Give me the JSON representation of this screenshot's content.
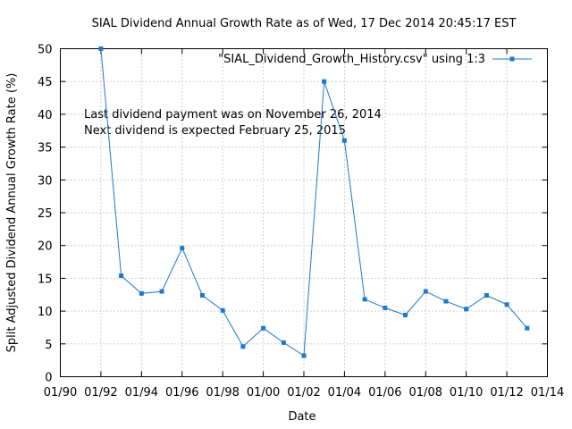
{
  "chart_data": {
    "type": "line",
    "title": "SIAL Dividend Annual Growth Rate as of Wed, 17 Dec 2014 20:45:17 EST",
    "xlabel": "Date",
    "ylabel": "Split Adjusted Dividend Annual Growth Rate (%)",
    "x_tick_labels": [
      "01/90",
      "01/92",
      "01/94",
      "01/96",
      "01/98",
      "01/00",
      "01/02",
      "01/04",
      "01/06",
      "01/08",
      "01/10",
      "01/12",
      "01/14"
    ],
    "x_ticks": [
      1990,
      1992,
      1994,
      1996,
      1998,
      2000,
      2002,
      2004,
      2006,
      2008,
      2010,
      2012,
      2014
    ],
    "y_ticks": [
      0,
      5,
      10,
      15,
      20,
      25,
      30,
      35,
      40,
      45,
      50
    ],
    "xlim": [
      1990,
      2014
    ],
    "ylim": [
      0,
      50
    ],
    "grid": true,
    "legend_position": "top-right",
    "annotations": [
      "Last dividend payment was on November 26, 2014",
      "Next dividend is expected February 25, 2015"
    ],
    "series": [
      {
        "name": "\"SIAL_Dividend_Growth_History.csv\" using 1:3",
        "color": "#1f78c8",
        "x": [
          1992,
          1993,
          1994,
          1995,
          1996,
          1997,
          1998,
          1999,
          2000,
          2001,
          2002,
          2003,
          2004,
          2005,
          2006,
          2007,
          2008,
          2009,
          2010,
          2011,
          2012,
          2013
        ],
        "y": [
          50,
          15.4,
          12.7,
          13,
          19.6,
          12.4,
          10.1,
          4.6,
          7.4,
          5.2,
          3.2,
          45,
          36,
          11.8,
          10.5,
          9.4,
          13,
          11.5,
          10.3,
          12.4,
          11,
          7.4
        ]
      }
    ]
  }
}
